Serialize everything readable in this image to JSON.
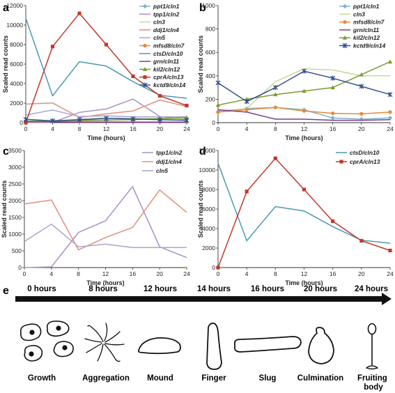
{
  "panels": {
    "a": {
      "label": "a"
    },
    "b": {
      "label": "b"
    },
    "c": {
      "label": "c"
    },
    "d": {
      "label": "d"
    },
    "e": {
      "label": "e"
    }
  },
  "colors": {
    "ppt1": "#7fb2c8",
    "tpp1": "#a98fc4",
    "cln3": "#c8d89a",
    "ddj1": "#e0907e",
    "cln5": "#a6a6cf",
    "mfsd8": "#e8883a",
    "ctsD": "#4b9ab0",
    "grn": "#7a3f8e",
    "kil2": "#7a9a30",
    "cprA": "#c0392b",
    "kctd9": "#34508f"
  },
  "chart_data": [
    {
      "id": "a",
      "type": "line",
      "xlabel": "Time (hours)",
      "ylabel": "Scaled read counts",
      "x": [
        0,
        4,
        8,
        12,
        16,
        20,
        24
      ],
      "ylim": [
        0,
        12000
      ],
      "yticks": [
        0,
        2000,
        4000,
        6000,
        8000,
        10000,
        12000
      ],
      "legend": "right",
      "series": [
        {
          "name": "ppt1/cln1",
          "color": "#7fb2c8",
          "marker": "diamond",
          "values": [
            90,
            120,
            130,
            110,
            40,
            30,
            40
          ]
        },
        {
          "name": "tpp1/cln2",
          "color": "#a98fc4",
          "marker": "none",
          "values": [
            0,
            20,
            1050,
            1400,
            2420,
            620,
            300
          ]
        },
        {
          "name": "cln3",
          "color": "#c8d89a",
          "marker": "none",
          "values": [
            100,
            120,
            350,
            460,
            450,
            400,
            400
          ]
        },
        {
          "name": "ddj1/cln4",
          "color": "#e0907e",
          "marker": "none",
          "values": [
            1900,
            2020,
            530,
            900,
            1200,
            2320,
            1650
          ]
        },
        {
          "name": "cln5",
          "color": "#a6a6cf",
          "marker": "none",
          "values": [
            780,
            1300,
            620,
            700,
            600,
            600,
            600
          ]
        },
        {
          "name": "mfsd8/cln7",
          "color": "#e8883a",
          "marker": "circle",
          "values": [
            90,
            110,
            130,
            100,
            80,
            75,
            90
          ]
        },
        {
          "name": "ctsD/cln10",
          "color": "#4b9ab0",
          "marker": "none",
          "values": [
            10700,
            2750,
            6250,
            5800,
            4200,
            2800,
            2500
          ]
        },
        {
          "name": "grn/cln11",
          "color": "#7a3f8e",
          "marker": "none",
          "values": [
            110,
            90,
            30,
            30,
            20,
            20,
            25
          ]
        },
        {
          "name": "kil2/cln12",
          "color": "#7a9a30",
          "marker": "triangle",
          "values": [
            150,
            200,
            240,
            270,
            300,
            410,
            520
          ]
        },
        {
          "name": "cprA/cln13",
          "color": "#c0392b",
          "marker": "square",
          "values": [
            0,
            7800,
            11200,
            8000,
            4750,
            2750,
            1750
          ]
        },
        {
          "name": "kctd9/cln14",
          "color": "#34508f",
          "marker": "star",
          "values": [
            340,
            180,
            300,
            440,
            380,
            310,
            240
          ]
        }
      ]
    },
    {
      "id": "b",
      "type": "line",
      "xlabel": "Time (hours)",
      "ylabel": "Scaled read counts",
      "x": [
        0,
        4,
        8,
        12,
        16,
        20,
        24
      ],
      "ylim": [
        0,
        1000
      ],
      "yticks": [
        0,
        200,
        400,
        600,
        800,
        1000
      ],
      "legend": "right",
      "series": [
        {
          "name": "ppt1/cln1",
          "color": "#7fb2c8",
          "marker": "diamond",
          "values": [
            90,
            120,
            130,
            110,
            40,
            30,
            40
          ]
        },
        {
          "name": "cln3",
          "color": "#c8d89a",
          "marker": "none",
          "values": [
            100,
            120,
            350,
            460,
            450,
            400,
            400
          ]
        },
        {
          "name": "mfsd8/cln7",
          "color": "#e8883a",
          "marker": "circle",
          "values": [
            90,
            110,
            130,
            100,
            80,
            75,
            90
          ]
        },
        {
          "name": "grn/cln11",
          "color": "#7a3f8e",
          "marker": "none",
          "values": [
            110,
            90,
            30,
            30,
            20,
            20,
            25
          ]
        },
        {
          "name": "kil2/cln12",
          "color": "#7a9a30",
          "marker": "triangle",
          "values": [
            150,
            200,
            240,
            270,
            300,
            410,
            520
          ]
        },
        {
          "name": "kctd9/cln14",
          "color": "#34508f",
          "marker": "star",
          "values": [
            340,
            180,
            300,
            440,
            380,
            310,
            240
          ]
        }
      ]
    },
    {
      "id": "c",
      "type": "line",
      "xlabel": "Time (hours)",
      "ylabel": "Scaled read counts",
      "x": [
        0,
        4,
        8,
        12,
        16,
        20,
        24
      ],
      "ylim": [
        0,
        3500
      ],
      "yticks": [
        0,
        500,
        1000,
        1500,
        2000,
        2500,
        3000,
        3500
      ],
      "legend": "top-right",
      "series": [
        {
          "name": "tpp1/cln2",
          "color": "#a98fc4",
          "marker": "none",
          "values": [
            0,
            20,
            1050,
            1400,
            2420,
            620,
            300
          ]
        },
        {
          "name": "ddj1/cln4",
          "color": "#e0907e",
          "marker": "none",
          "values": [
            1900,
            2020,
            530,
            900,
            1200,
            2320,
            1650
          ]
        },
        {
          "name": "cln5",
          "color": "#a6a6cf",
          "marker": "none",
          "values": [
            780,
            1300,
            620,
            700,
            600,
            600,
            600
          ]
        }
      ]
    },
    {
      "id": "d",
      "type": "line",
      "xlabel": "Time (hours)",
      "ylabel": "Scaled read counts",
      "x": [
        0,
        4,
        8,
        12,
        16,
        20,
        24
      ],
      "ylim": [
        0,
        12000
      ],
      "yticks": [
        0,
        2000,
        4000,
        6000,
        8000,
        10000,
        12000
      ],
      "legend": "top-right",
      "series": [
        {
          "name": "ctsD/cln10",
          "color": "#4b9ab0",
          "marker": "none",
          "values": [
            10700,
            2750,
            6250,
            5800,
            4200,
            2800,
            2500
          ]
        },
        {
          "name": "cprA/cln13",
          "color": "#c0392b",
          "marker": "square",
          "values": [
            0,
            7800,
            11200,
            8000,
            4750,
            2750,
            1750
          ]
        }
      ]
    }
  ],
  "timeline": {
    "stages": [
      {
        "time": "0 hours",
        "name": "Growth",
        "icon": "amoeba-cells-icon"
      },
      {
        "time": "8 hours",
        "name": "Aggregation",
        "icon": "aggregation-streams-icon"
      },
      {
        "time": "12 hours",
        "name": "Mound",
        "icon": "mound-icon"
      },
      {
        "time": "14 hours",
        "name": "Finger",
        "icon": "finger-icon"
      },
      {
        "time": "16 hours",
        "name": "Slug",
        "icon": "slug-icon"
      },
      {
        "time": "20 hours",
        "name": "Culmination",
        "icon": "culmination-icon"
      },
      {
        "time": "24 hours",
        "name": "Fruiting body",
        "name_lines": [
          "Fruiting",
          "body"
        ],
        "icon": "fruiting-body-icon"
      }
    ]
  }
}
